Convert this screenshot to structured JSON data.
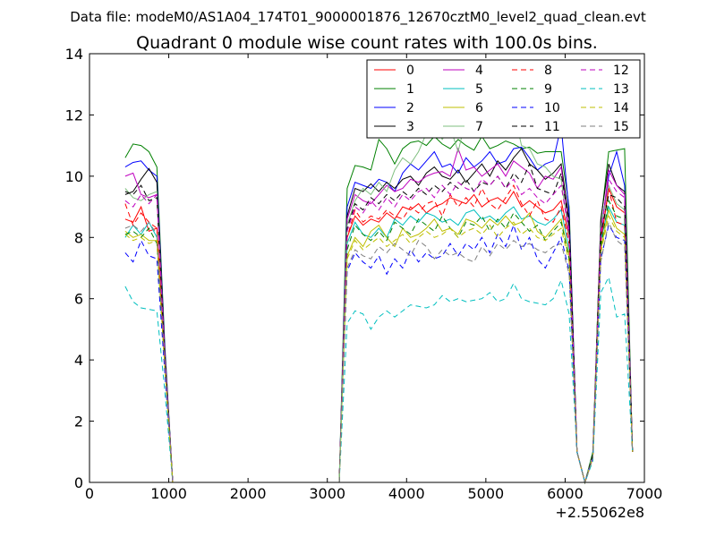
{
  "chart_data": {
    "type": "line",
    "suptitle": "Data file: modeM0/AS1A04_174T01_9000001876_12670cztM0_level2_quad_clean.evt",
    "title": "Quadrant 0 module wise count rates with 100.0s bins.",
    "xlabel": "",
    "ylabel": "",
    "x_offset_label": "+2.55062e8",
    "xlim": [
      0,
      7000
    ],
    "ylim": [
      0,
      14
    ],
    "x_ticks": [
      "0",
      "1000",
      "2000",
      "3000",
      "4000",
      "5000",
      "6000",
      "7000"
    ],
    "y_ticks": [
      "0",
      "2",
      "4",
      "6",
      "8",
      "10",
      "12",
      "14"
    ],
    "grid": false,
    "legend_position": "top-right",
    "legend_columns": 4,
    "x_segments": [
      [
        450,
        550,
        650,
        750,
        850,
        950,
        1050
      ],
      [
        3150,
        3250,
        3350,
        3450,
        3550,
        3650,
        3750,
        3850,
        3950,
        4050,
        4150,
        4250,
        4350,
        4450,
        4550,
        4650,
        4750,
        4850,
        4950,
        5050,
        5150,
        5250,
        5350,
        5450,
        5550,
        5650,
        5750,
        5850,
        5950,
        6050,
        6150,
        6250,
        6350,
        6450,
        6550,
        6650,
        6750,
        6850
      ]
    ],
    "x_gap": [
      1050,
      3150
    ],
    "series": [
      {
        "name": "0",
        "color": "#ff0000",
        "dash": "solid",
        "values": [
          [
            8.6,
            8.5,
            9.0,
            8.2,
            8.3,
            4.0,
            0
          ],
          [
            0,
            8.0,
            8.7,
            8.4,
            8.6,
            8.5,
            8.8,
            8.6,
            9.0,
            8.9,
            9.1,
            8.8,
            9.0,
            9.1,
            9.3,
            9.2,
            9.1,
            9.4,
            9.0,
            9.2,
            9.3,
            9.1,
            9.5,
            9.0,
            9.2,
            9.0,
            8.8,
            8.9,
            9.2,
            8.0,
            1.0,
            0,
            0.8,
            7.8,
            9.6,
            9.0,
            8.8,
            1.0
          ]
        ]
      },
      {
        "name": "1",
        "color": "#008000",
        "dash": "solid",
        "values": [
          [
            10.6,
            11.05,
            11.0,
            10.8,
            10.3,
            4.5,
            0
          ],
          [
            0,
            9.6,
            10.35,
            10.3,
            10.2,
            11.2,
            10.9,
            10.4,
            10.9,
            11.1,
            11.15,
            11.0,
            11.3,
            11.05,
            10.9,
            11.2,
            11.0,
            10.85,
            11.3,
            10.9,
            11.0,
            11.15,
            11.05,
            10.9,
            10.95,
            10.75,
            10.8,
            10.8,
            10.8,
            9.0,
            1.0,
            0,
            1.0,
            8.5,
            10.8,
            10.85,
            10.9,
            1.0
          ]
        ]
      },
      {
        "name": "2",
        "color": "#0000ff",
        "dash": "solid",
        "values": [
          [
            10.3,
            10.45,
            10.5,
            10.2,
            10.0,
            4.4,
            0
          ],
          [
            0,
            9.0,
            9.8,
            9.7,
            9.6,
            9.9,
            9.8,
            9.5,
            10.1,
            10.4,
            10.2,
            10.5,
            10.8,
            10.3,
            10.4,
            10.1,
            10.6,
            10.3,
            10.5,
            10.8,
            10.4,
            10.5,
            10.9,
            10.95,
            10.6,
            10.2,
            10.4,
            10.5,
            11.65,
            8.8,
            1.0,
            0,
            0.9,
            8.2,
            10.0,
            10.8,
            9.7,
            1.0
          ]
        ]
      },
      {
        "name": "3",
        "color": "#000000",
        "dash": "solid",
        "values": [
          [
            9.4,
            9.5,
            9.9,
            10.25,
            9.8,
            4.3,
            0
          ],
          [
            0,
            8.7,
            9.6,
            9.5,
            9.75,
            9.5,
            9.8,
            9.6,
            9.9,
            10.0,
            9.7,
            10.1,
            10.3,
            10.0,
            9.9,
            10.2,
            9.8,
            10.1,
            10.4,
            10.0,
            10.5,
            10.2,
            10.6,
            10.9,
            10.4,
            10.2,
            9.9,
            10.1,
            10.4,
            8.6,
            1.0,
            0,
            0.8,
            8.6,
            10.4,
            9.7,
            9.5,
            1.0
          ]
        ]
      },
      {
        "name": "4",
        "color": "#bf00bf",
        "dash": "solid",
        "values": [
          [
            10.0,
            10.1,
            9.4,
            9.3,
            9.4,
            4.2,
            0
          ],
          [
            0,
            8.6,
            9.4,
            9.2,
            9.1,
            9.4,
            9.7,
            9.5,
            9.6,
            9.9,
            9.8,
            10.0,
            10.1,
            10.15,
            10.0,
            10.9,
            10.2,
            10.3,
            10.0,
            10.2,
            10.4,
            10.0,
            10.5,
            10.3,
            10.1,
            9.6,
            10.0,
            9.9,
            10.3,
            8.2,
            1.0,
            0,
            0.9,
            8.0,
            10.2,
            9.7,
            9.4,
            1.0
          ]
        ]
      },
      {
        "name": "5",
        "color": "#00bfbf",
        "dash": "solid",
        "values": [
          [
            8.0,
            8.4,
            8.1,
            8.5,
            8.0,
            3.9,
            0
          ],
          [
            0,
            7.8,
            8.5,
            8.1,
            8.0,
            8.3,
            8.0,
            8.6,
            8.4,
            8.7,
            8.5,
            8.8,
            8.7,
            8.5,
            8.6,
            8.4,
            8.8,
            8.9,
            8.6,
            8.7,
            8.5,
            8.8,
            9.0,
            8.6,
            8.7,
            8.5,
            8.4,
            8.6,
            8.9,
            7.6,
            1.0,
            0,
            0.9,
            7.9,
            9.0,
            8.5,
            8.4,
            1.0
          ]
        ]
      },
      {
        "name": "6",
        "color": "#bfbf00",
        "dash": "solid",
        "values": [
          [
            8.2,
            8.0,
            8.1,
            7.9,
            7.9,
            3.8,
            0
          ],
          [
            0,
            7.4,
            8.0,
            7.7,
            8.2,
            8.4,
            8.0,
            7.7,
            8.3,
            8.0,
            8.1,
            8.3,
            8.6,
            8.2,
            8.3,
            8.1,
            8.6,
            8.5,
            8.3,
            8.6,
            8.4,
            8.7,
            8.4,
            8.5,
            8.8,
            8.2,
            8.0,
            8.3,
            8.6,
            7.4,
            1.0,
            0,
            0.8,
            7.6,
            8.9,
            8.3,
            8.1,
            1.0
          ]
        ]
      },
      {
        "name": "7",
        "color": "#7fbf7f",
        "dash": "solid",
        "values": [
          [
            9.6,
            9.3,
            9.2,
            9.4,
            9.5,
            4.1,
            0
          ],
          [
            0,
            8.4,
            9.2,
            9.6,
            9.4,
            9.8,
            9.5,
            10.2,
            10.6,
            10.4,
            10.8,
            11.4,
            11.8,
            11.2,
            11.6,
            10.8,
            11.9,
            11.4,
            11.7,
            11.3,
            11.6,
            11.5,
            12.15,
            11.0,
            10.9,
            10.4,
            10.3,
            10.0,
            9.9,
            8.0,
            1.0,
            0,
            0.9,
            8.3,
            9.7,
            9.1,
            8.9,
            1.0
          ]
        ]
      },
      {
        "name": "8",
        "color": "#ff0000",
        "dash": "dashed",
        "values": [
          [
            9.1,
            8.4,
            8.8,
            8.5,
            8.3,
            4.0,
            0
          ],
          [
            0,
            8.0,
            8.9,
            8.5,
            8.7,
            8.6,
            8.9,
            8.7,
            8.6,
            9.0,
            8.8,
            9.1,
            9.2,
            8.7,
            9.4,
            9.0,
            9.3,
            9.0,
            9.6,
            9.1,
            8.9,
            9.3,
            9.7,
            9.1,
            8.7,
            9.2,
            8.6,
            8.5,
            9.0,
            7.8,
            1.0,
            0,
            0.8,
            7.9,
            9.6,
            8.5,
            8.4,
            1.0
          ]
        ]
      },
      {
        "name": "9",
        "color": "#008000",
        "dash": "dashed",
        "values": [
          [
            8.1,
            8.2,
            8.0,
            8.3,
            7.8,
            3.8,
            0
          ],
          [
            0,
            7.6,
            8.4,
            8.1,
            7.9,
            8.2,
            7.9,
            8.5,
            8.3,
            8.1,
            8.6,
            8.4,
            8.2,
            8.7,
            8.3,
            8.0,
            8.5,
            8.4,
            8.7,
            8.2,
            8.6,
            8.3,
            8.8,
            8.5,
            8.2,
            8.4,
            7.9,
            8.2,
            8.5,
            7.3,
            1.0,
            0,
            0.8,
            7.7,
            9.2,
            8.7,
            8.6,
            1.0
          ]
        ]
      },
      {
        "name": "10",
        "color": "#0000ff",
        "dash": "dashed",
        "values": [
          [
            7.5,
            7.2,
            7.9,
            7.4,
            7.3,
            3.6,
            0
          ],
          [
            0,
            6.9,
            7.5,
            7.2,
            7.0,
            7.4,
            6.8,
            7.3,
            7.0,
            7.6,
            7.2,
            7.5,
            7.3,
            7.4,
            7.8,
            7.4,
            7.8,
            7.6,
            8.0,
            7.5,
            8.1,
            7.7,
            8.4,
            7.6,
            8.0,
            7.3,
            7.0,
            7.5,
            8.0,
            6.9,
            1.0,
            0,
            0.8,
            7.3,
            8.4,
            8.0,
            7.9,
            1.0
          ]
        ]
      },
      {
        "name": "11",
        "color": "#000000",
        "dash": "dashed",
        "values": [
          [
            9.5,
            9.4,
            9.7,
            9.2,
            9.3,
            4.1,
            0
          ],
          [
            0,
            8.3,
            9.1,
            8.9,
            9.3,
            9.1,
            9.4,
            9.2,
            9.5,
            9.3,
            9.6,
            9.4,
            9.7,
            9.5,
            9.8,
            9.6,
            9.9,
            9.5,
            9.8,
            9.7,
            10.0,
            9.6,
            10.1,
            9.8,
            10.4,
            9.6,
            9.5,
            9.4,
            10.1,
            8.4,
            1.0,
            0,
            0.9,
            8.1,
            9.4,
            9.3,
            9.0,
            1.0
          ]
        ]
      },
      {
        "name": "12",
        "color": "#bf00bf",
        "dash": "dashed",
        "values": [
          [
            9.2,
            9.0,
            9.4,
            9.1,
            9.4,
            4.1,
            0
          ],
          [
            0,
            8.2,
            9.0,
            8.8,
            9.2,
            8.9,
            9.3,
            9.0,
            9.4,
            9.2,
            9.5,
            9.6,
            9.3,
            9.7,
            9.4,
            9.8,
            9.6,
            9.5,
            9.9,
            9.7,
            10.0,
            9.6,
            9.9,
            9.4,
            9.6,
            9.3,
            9.1,
            9.4,
            9.7,
            8.1,
            1.0,
            0,
            0.8,
            8.2,
            9.9,
            9.5,
            9.3,
            1.0
          ]
        ]
      },
      {
        "name": "13",
        "color": "#00bfbf",
        "dash": "dashed",
        "values": [
          [
            6.4,
            5.9,
            5.7,
            5.65,
            5.6,
            3.0,
            0
          ],
          [
            0,
            5.2,
            5.6,
            5.5,
            5.0,
            5.4,
            5.6,
            5.4,
            5.6,
            5.8,
            5.75,
            5.7,
            5.8,
            6.1,
            5.9,
            6.0,
            5.9,
            5.95,
            6.0,
            6.2,
            5.9,
            6.0,
            6.5,
            6.0,
            5.9,
            5.85,
            5.8,
            6.0,
            6.6,
            5.5,
            1.0,
            0,
            0.7,
            6.2,
            6.7,
            5.4,
            5.5,
            1.0
          ]
        ]
      },
      {
        "name": "14",
        "color": "#bfbf00",
        "dash": "dashed",
        "values": [
          [
            8.1,
            7.9,
            8.0,
            7.8,
            7.9,
            3.8,
            0
          ],
          [
            0,
            7.3,
            7.9,
            7.6,
            7.8,
            8.0,
            7.7,
            7.9,
            8.1,
            7.8,
            8.0,
            8.2,
            8.0,
            8.1,
            8.3,
            8.0,
            8.2,
            8.3,
            8.1,
            8.4,
            8.0,
            8.3,
            8.5,
            8.1,
            8.3,
            8.0,
            7.9,
            8.1,
            8.3,
            7.2,
            1.0,
            0,
            0.8,
            7.5,
            8.7,
            8.2,
            8.0,
            1.0
          ]
        ]
      },
      {
        "name": "15",
        "color": "#7f7f7f",
        "dash": "dashed",
        "values": [
          [
            8.3,
            8.4,
            8.2,
            8.5,
            8.1,
            3.9,
            0
          ],
          [
            0,
            7.0,
            7.6,
            7.4,
            7.3,
            7.7,
            7.5,
            7.8,
            7.6,
            7.4,
            7.9,
            7.7,
            7.3,
            7.6,
            7.4,
            7.5,
            7.3,
            7.2,
            7.7,
            7.4,
            7.8,
            7.6,
            7.9,
            7.7,
            7.8,
            7.6,
            7.5,
            7.7,
            7.8,
            6.8,
            1.0,
            0,
            0.8,
            7.2,
            8.5,
            7.9,
            7.7,
            1.0
          ]
        ]
      }
    ]
  }
}
